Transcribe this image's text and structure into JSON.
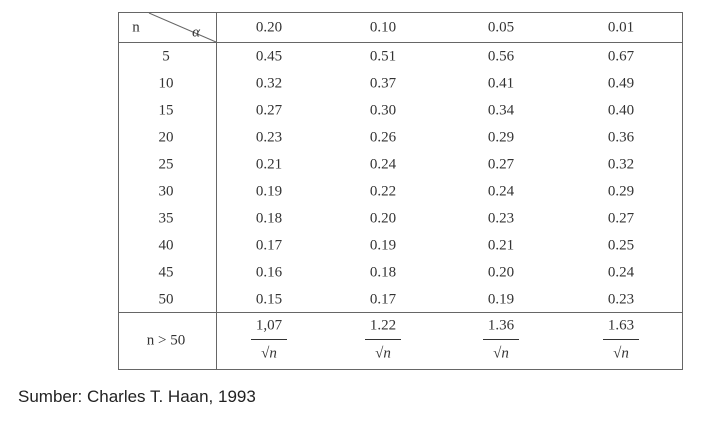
{
  "table": {
    "header": {
      "n": "n",
      "alpha": "α",
      "columns": [
        "0.20",
        "0.10",
        "0.05",
        "0.01"
      ]
    },
    "rows": [
      [
        "5",
        "0.45",
        "0.51",
        "0.56",
        "0.67"
      ],
      [
        "10",
        "0.32",
        "0.37",
        "0.41",
        "0.49"
      ],
      [
        "15",
        "0.27",
        "0.30",
        "0.34",
        "0.40"
      ],
      [
        "20",
        "0.23",
        "0.26",
        "0.29",
        "0.36"
      ],
      [
        "25",
        "0.21",
        "0.24",
        "0.27",
        "0.32"
      ],
      [
        "30",
        "0.19",
        "0.22",
        "0.24",
        "0.29"
      ],
      [
        "35",
        "0.18",
        "0.20",
        "0.23",
        "0.27"
      ],
      [
        "40",
        "0.17",
        "0.19",
        "0.21",
        "0.25"
      ],
      [
        "45",
        "0.16",
        "0.18",
        "0.20",
        "0.24"
      ],
      [
        "50",
        "0.15",
        "0.17",
        "0.19",
        "0.23"
      ]
    ],
    "large_n": {
      "label": "n > 50",
      "numerators": [
        "1,07",
        "1.22",
        "1.36",
        "1.63"
      ],
      "denominators": [
        "√n",
        "√n",
        "√n",
        "√n"
      ]
    }
  },
  "source": "Sumber: Charles T. Haan, 1993"
}
